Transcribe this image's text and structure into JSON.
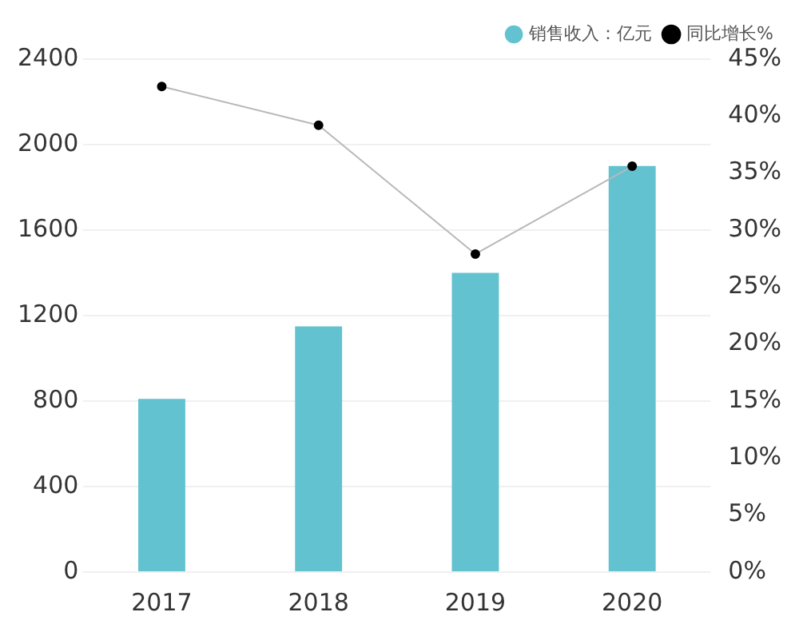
{
  "chart_data": {
    "type": "bar",
    "categories": [
      "2017",
      "2018",
      "2019",
      "2020"
    ],
    "series": [
      {
        "name": "销售收入：亿元",
        "color": "#62c2cf",
        "values": [
          810,
          1150,
          1400,
          1900
        ]
      },
      {
        "name": "同比增长%",
        "type": "line",
        "axis": "y2",
        "color": "#000000",
        "values": [
          42.6,
          39.2,
          27.9,
          35.6
        ]
      }
    ],
    "ylim": [
      0,
      2400
    ],
    "yticks": [
      0,
      400,
      800,
      1200,
      1600,
      2000,
      2400
    ],
    "y2lim": [
      0,
      45
    ],
    "y2ticks": [
      {
        "value": 0,
        "label": "0%"
      },
      {
        "value": 5,
        "label": "5%"
      },
      {
        "value": 10,
        "label": "10%"
      },
      {
        "value": 15,
        "label": "15%"
      },
      {
        "value": 20,
        "label": "20%"
      },
      {
        "value": 25,
        "label": "25%"
      },
      {
        "value": 30,
        "label": "30%"
      },
      {
        "value": 35,
        "label": "35%"
      },
      {
        "value": 40,
        "label": "40%"
      },
      {
        "value": 45,
        "label": "45%"
      }
    ],
    "grid": "y",
    "legend": "top right",
    "marker": "circle"
  }
}
